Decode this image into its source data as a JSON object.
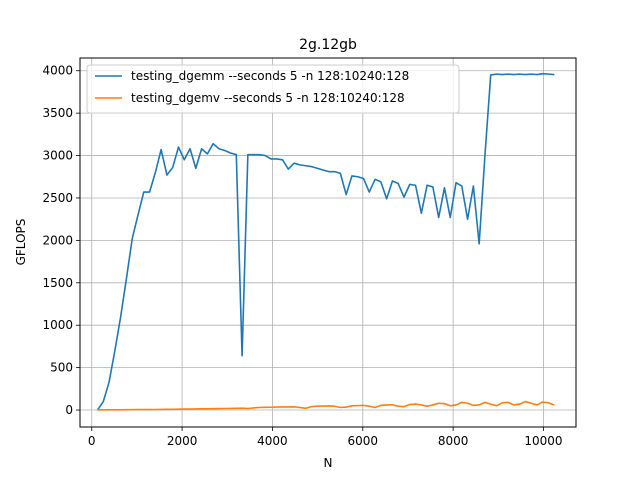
{
  "chart_data": {
    "type": "line",
    "title": "2g.12gb",
    "xlabel": "N",
    "ylabel": "GFLOPS",
    "xlim": [
      -260,
      10720
    ],
    "ylim": [
      -200,
      4150
    ],
    "xticks": [
      0,
      2000,
      4000,
      6000,
      8000,
      10000
    ],
    "yticks": [
      0,
      500,
      1000,
      1500,
      2000,
      2500,
      3000,
      3500,
      4000
    ],
    "grid": true,
    "legend_position": "top-left",
    "series": [
      {
        "name": "testing_dgemm --seconds 5 -n 128:10240:128",
        "color": "#1f77b4",
        "x": [
          128,
          256,
          384,
          512,
          640,
          768,
          896,
          1024,
          1152,
          1280,
          1408,
          1536,
          1664,
          1792,
          1920,
          2048,
          2176,
          2304,
          2432,
          2560,
          2688,
          2816,
          2944,
          3072,
          3200,
          3328,
          3456,
          3584,
          3712,
          3840,
          3968,
          4096,
          4224,
          4352,
          4480,
          4608,
          4736,
          4864,
          4992,
          5120,
          5248,
          5376,
          5504,
          5632,
          5760,
          5888,
          6016,
          6144,
          6272,
          6400,
          6528,
          6656,
          6784,
          6912,
          7040,
          7168,
          7296,
          7424,
          7552,
          7680,
          7808,
          7936,
          8064,
          8192,
          8320,
          8448,
          8576,
          8704,
          8832,
          8960,
          9088,
          9216,
          9344,
          9472,
          9600,
          9728,
          9856,
          9984,
          10112,
          10240
        ],
        "y": [
          0,
          100,
          330,
          700,
          1100,
          1550,
          2020,
          2300,
          2570,
          2570,
          2800,
          3070,
          2770,
          2860,
          3100,
          2950,
          3080,
          2850,
          3080,
          3020,
          3140,
          3080,
          3060,
          3030,
          3010,
          640,
          3010,
          3010,
          3010,
          3000,
          2960,
          2960,
          2950,
          2840,
          2910,
          2890,
          2880,
          2870,
          2850,
          2830,
          2810,
          2810,
          2790,
          2540,
          2760,
          2750,
          2730,
          2570,
          2720,
          2690,
          2490,
          2700,
          2670,
          2510,
          2660,
          2650,
          2320,
          2650,
          2630,
          2270,
          2620,
          2270,
          2680,
          2640,
          2250,
          2640,
          1960,
          3000,
          3950,
          3960,
          3955,
          3960,
          3955,
          3960,
          3955,
          3960,
          3955,
          3965,
          3960,
          3955
        ]
      },
      {
        "name": "testing_dgemv --seconds 5 -n 128:10240:128",
        "color": "#ff7f0e",
        "x": [
          128,
          256,
          384,
          512,
          640,
          768,
          896,
          1024,
          1152,
          1280,
          1408,
          1536,
          1664,
          1792,
          1920,
          2048,
          2176,
          2304,
          2432,
          2560,
          2688,
          2816,
          2944,
          3072,
          3200,
          3328,
          3456,
          3584,
          3712,
          3840,
          3968,
          4096,
          4224,
          4352,
          4480,
          4608,
          4736,
          4864,
          4992,
          5120,
          5248,
          5376,
          5504,
          5632,
          5760,
          5888,
          6016,
          6144,
          6272,
          6400,
          6528,
          6656,
          6784,
          6912,
          7040,
          7168,
          7296,
          7424,
          7552,
          7680,
          7808,
          7936,
          8064,
          8192,
          8320,
          8448,
          8576,
          8704,
          8832,
          8960,
          9088,
          9216,
          9344,
          9472,
          9600,
          9728,
          9856,
          9984,
          10112,
          10240
        ],
        "y": [
          1,
          2,
          2,
          3,
          3,
          4,
          4,
          5,
          5,
          6,
          6,
          7,
          8,
          9,
          10,
          11,
          12,
          13,
          14,
          15,
          16,
          17,
          18,
          19,
          20,
          22,
          18,
          25,
          30,
          32,
          33,
          35,
          36,
          37,
          38,
          30,
          20,
          40,
          45,
          47,
          48,
          45,
          30,
          35,
          50,
          52,
          55,
          45,
          30,
          55,
          60,
          62,
          45,
          40,
          65,
          70,
          60,
          45,
          60,
          80,
          75,
          50,
          60,
          90,
          80,
          55,
          60,
          90,
          70,
          50,
          85,
          90,
          60,
          70,
          100,
          80,
          60,
          95,
          85,
          60
        ]
      }
    ]
  }
}
